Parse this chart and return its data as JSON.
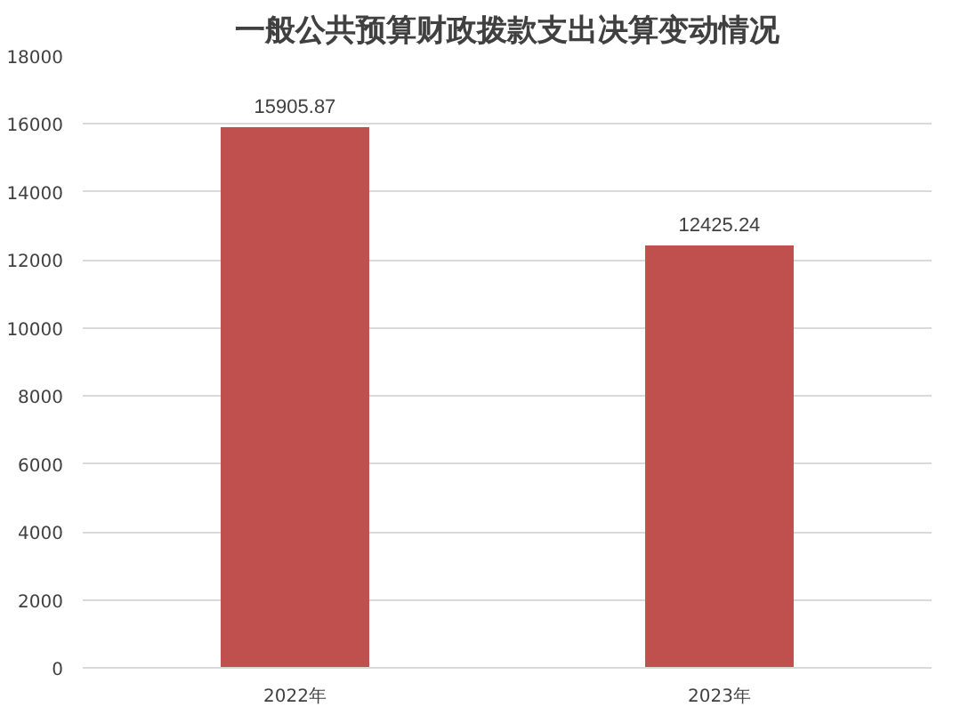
{
  "chart_data": {
    "type": "bar",
    "title": "一般公共预算财政拨款支出决算变动情况",
    "categories": [
      "2022年",
      "2023年"
    ],
    "values": [
      15905.87,
      12425.24
    ],
    "color": "#c0504d",
    "ylim": [
      0,
      18000
    ],
    "yticks": [
      0,
      2000,
      4000,
      6000,
      8000,
      10000,
      12000,
      14000,
      16000,
      18000
    ],
    "grid": "y",
    "data_labels": true
  }
}
